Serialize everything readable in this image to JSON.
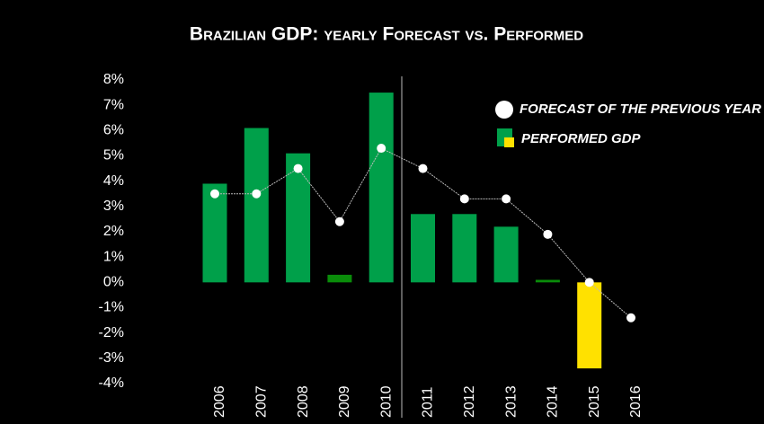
{
  "chart_data": {
    "type": "bar-line",
    "title": "Brazilian GDP: yearly Forecast vs. Performed",
    "categories": [
      "2006",
      "2007",
      "2008",
      "2009",
      "2010",
      "2011",
      "2012",
      "2013",
      "2014",
      "2015",
      "2016"
    ],
    "series": [
      {
        "name": "PERFORMED GDP",
        "type": "bar",
        "color": "#00a04a",
        "colors": [
          "#00a04a",
          "#00a04a",
          "#00a04a",
          "#0a8c0a",
          "#00a04a",
          "#00a04a",
          "#00a04a",
          "#00a04a",
          "#0a8c0a",
          "#ffe100",
          "#00a04a"
        ],
        "values": [
          3.9,
          6.1,
          5.1,
          0.3,
          7.5,
          2.7,
          2.7,
          2.2,
          0.1,
          -3.4,
          null
        ]
      },
      {
        "name": "FORECAST OF THE PREVIOUS YEAR",
        "type": "line",
        "color": "#ffffff",
        "values": [
          3.5,
          3.5,
          4.5,
          2.4,
          5.3,
          4.5,
          3.3,
          3.3,
          1.9,
          0.0,
          -1.4
        ]
      }
    ],
    "ylim": [
      -4,
      8
    ],
    "yticks": [
      {
        "value": -4,
        "label": "-4%"
      },
      {
        "value": -3,
        "label": "-3%"
      },
      {
        "value": -2,
        "label": "-2%"
      },
      {
        "value": -1,
        "label": "-1%"
      },
      {
        "value": 0,
        "label": "0%"
      },
      {
        "value": 1,
        "label": "1%"
      },
      {
        "value": 2,
        "label": "2%"
      },
      {
        "value": 3,
        "label": "3%"
      },
      {
        "value": 4,
        "label": "4%"
      },
      {
        "value": 5,
        "label": "5%"
      },
      {
        "value": 6,
        "label": "6%"
      },
      {
        "value": 7,
        "label": "7%"
      },
      {
        "value": 8,
        "label": "8%"
      }
    ],
    "grid": false
  }
}
